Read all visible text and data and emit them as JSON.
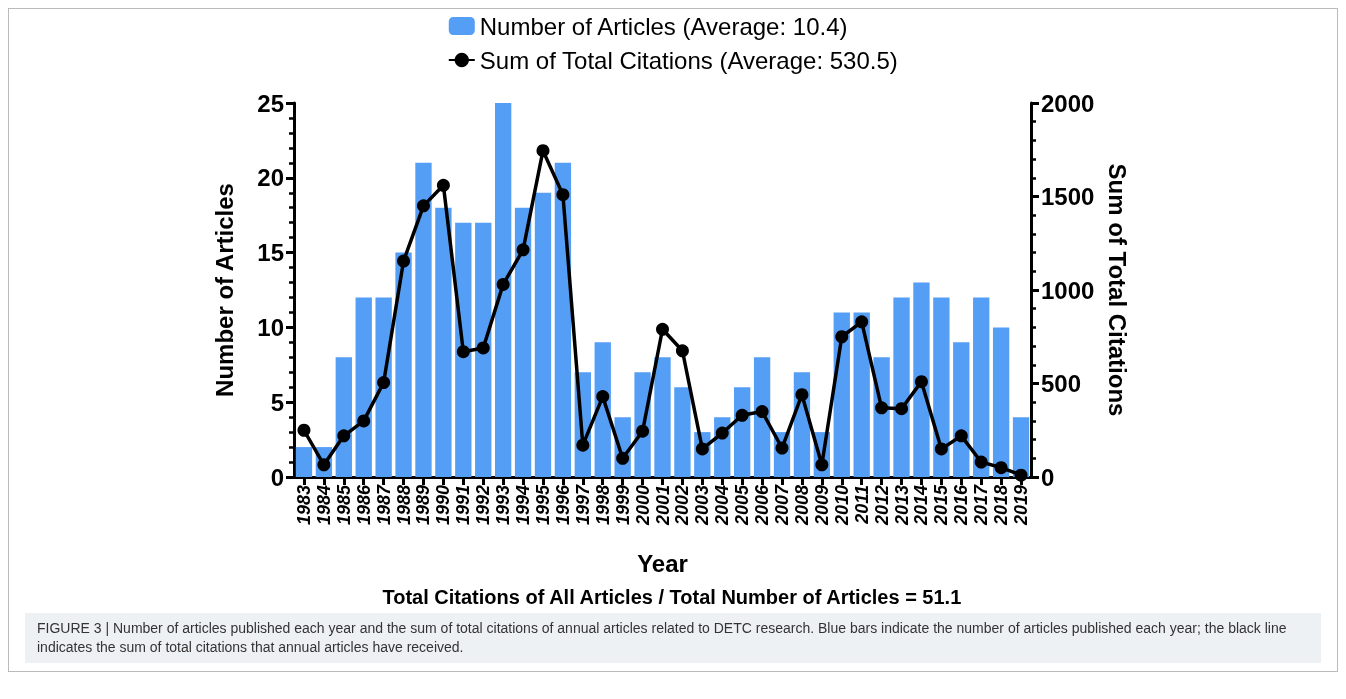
{
  "chart_data": {
    "type": "bar",
    "xlabel": "Year",
    "ylabel": "Number of Articles",
    "y2label": "Sum of Total Citations",
    "categories": [
      "1983",
      "1984",
      "1985",
      "1986",
      "1987",
      "1988",
      "1989",
      "1990",
      "1991",
      "1992",
      "1993",
      "1994",
      "1995",
      "1996",
      "1997",
      "1998",
      "1999",
      "2000",
      "2001",
      "2002",
      "2003",
      "2004",
      "2005",
      "2006",
      "2007",
      "2008",
      "2009",
      "2010",
      "2011",
      "2012",
      "2013",
      "2014",
      "2015",
      "2016",
      "2017",
      "2018",
      "2019"
    ],
    "series": [
      {
        "name": "Number of Articles (Average: 10.4)",
        "color": "#559ef5",
        "values": [
          2,
          2,
          8,
          12,
          12,
          15,
          21,
          18,
          17,
          17,
          25,
          18,
          19,
          21,
          7,
          9,
          4,
          7,
          8,
          6,
          3,
          4,
          6,
          8,
          3,
          7,
          3,
          11,
          11,
          8,
          12,
          13,
          12,
          9,
          12,
          10,
          4
        ]
      },
      {
        "name": "Sum of Total Citations (Average: 530.5)",
        "type": "line",
        "axis": "y2",
        "color": "#000000",
        "values": [
          250,
          65,
          220,
          300,
          505,
          1155,
          1450,
          1560,
          670,
          690,
          1030,
          1215,
          1745,
          1510,
          170,
          430,
          100,
          245,
          790,
          675,
          150,
          235,
          330,
          350,
          155,
          440,
          65,
          750,
          830,
          370,
          365,
          510,
          150,
          220,
          80,
          50,
          10
        ]
      }
    ],
    "ylim": [
      0,
      25
    ],
    "yticks": [
      0,
      5,
      10,
      15,
      20,
      25
    ],
    "y2lim": [
      0,
      2000
    ],
    "y2ticks": [
      0,
      500,
      1000,
      1500,
      2000
    ],
    "grid": false,
    "legend": "top",
    "marker": "circle",
    "line_style": "solid",
    "annotations": [
      "Total Citations of All Articles / Total Number of Articles = 51.1",
      "FIGURE 3 | Number of articles published each year and the sum of total citations of annual articles related to DETC research. Blue bars indicate the number of articles published each year; the black line indicates the sum of total citations that annual articles have received."
    ]
  }
}
